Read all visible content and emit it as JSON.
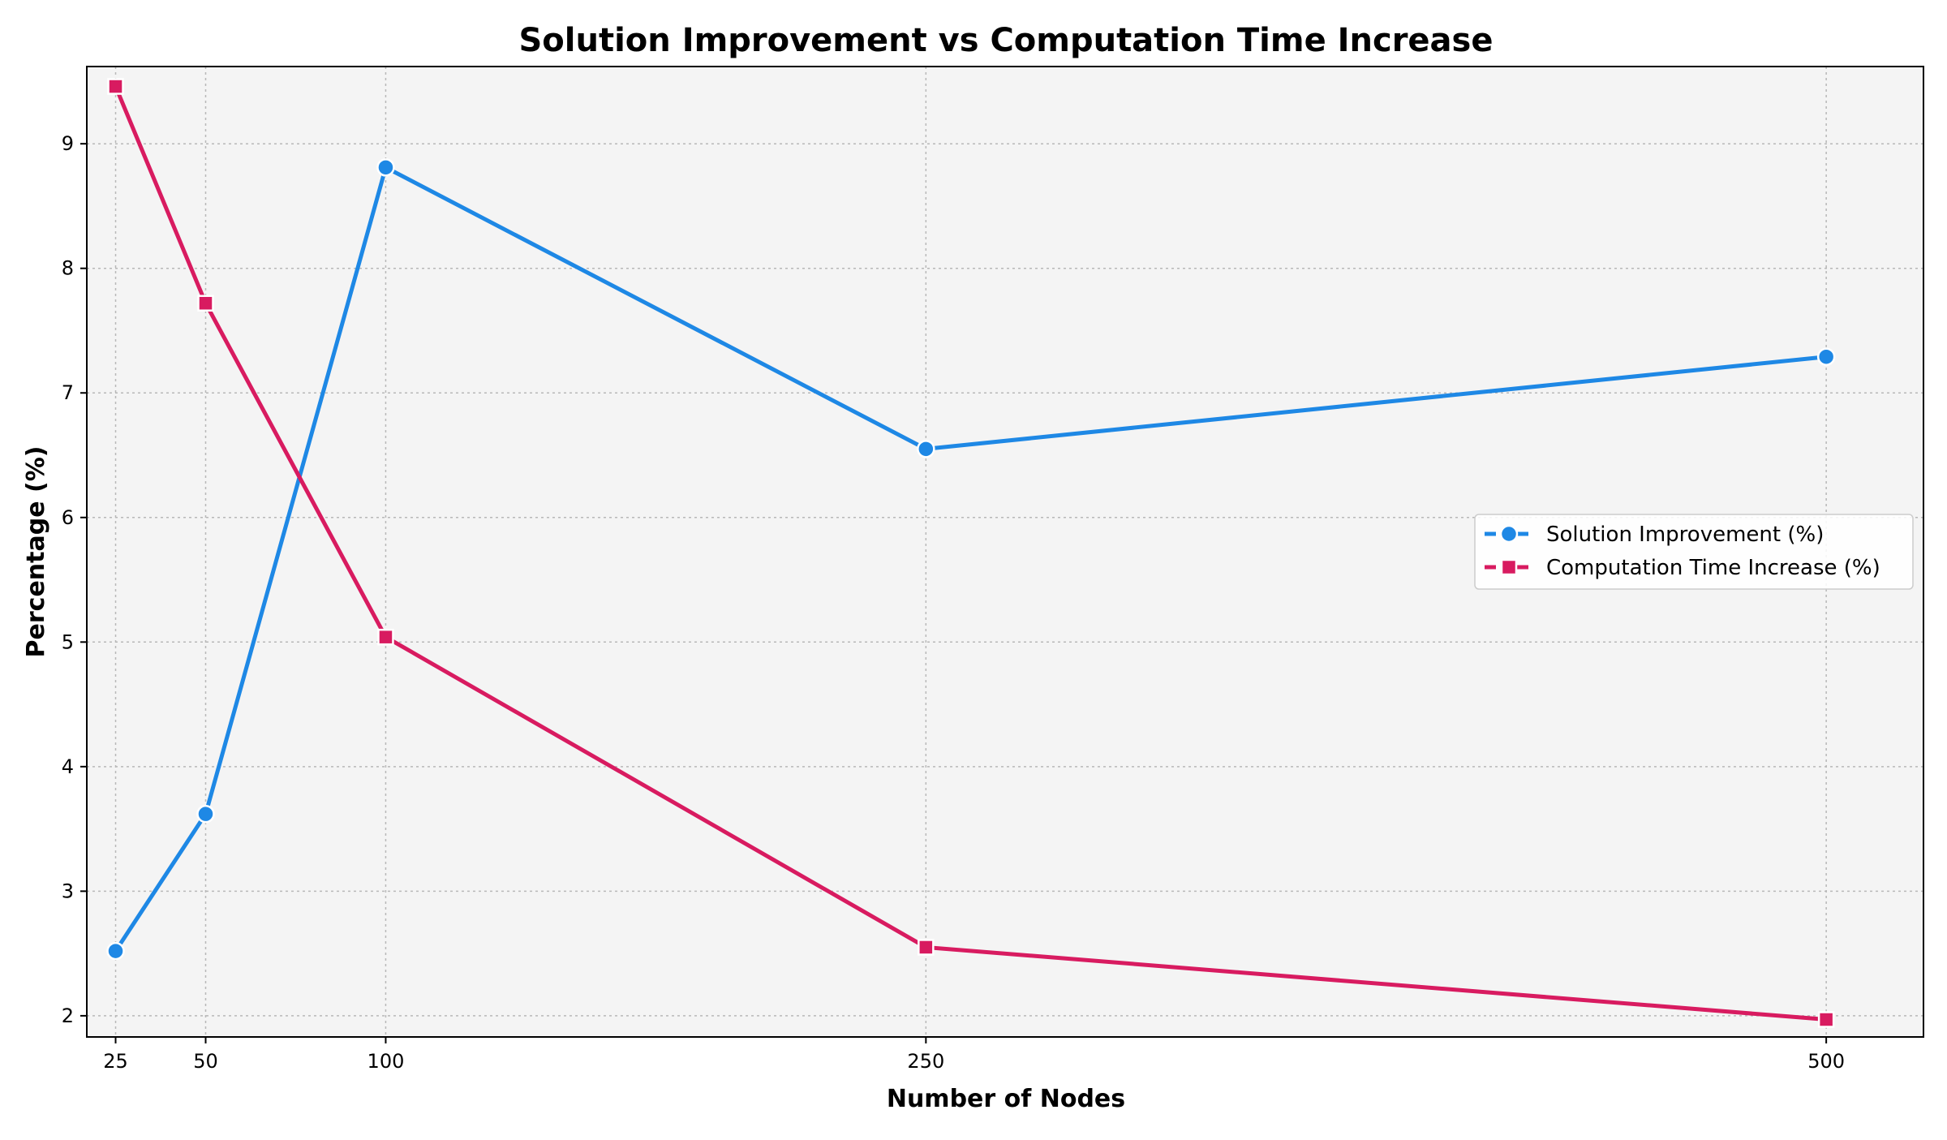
{
  "chart_data": {
    "type": "line",
    "title": "Solution Improvement vs Computation Time Increase",
    "xlabel": "Number of Nodes",
    "ylabel": "Percentage (%)",
    "x": [
      25,
      50,
      100,
      250,
      500
    ],
    "x_ticks": [
      25,
      50,
      100,
      250,
      500
    ],
    "y_ticks": [
      2,
      3,
      4,
      5,
      6,
      7,
      8,
      9
    ],
    "xlim": [
      17,
      527
    ],
    "ylim": [
      1.83,
      9.62
    ],
    "grid": true,
    "legend_position": "center-right",
    "series": [
      {
        "name": "Solution Improvement (%)",
        "values": [
          2.52,
          3.62,
          8.81,
          6.55,
          7.29
        ],
        "color": "#1e88e5",
        "marker": "circle"
      },
      {
        "name": "Computation Time Increase (%)",
        "values": [
          9.46,
          7.72,
          5.04,
          2.55,
          1.97
        ],
        "color": "#d81b60",
        "marker": "square"
      }
    ]
  }
}
